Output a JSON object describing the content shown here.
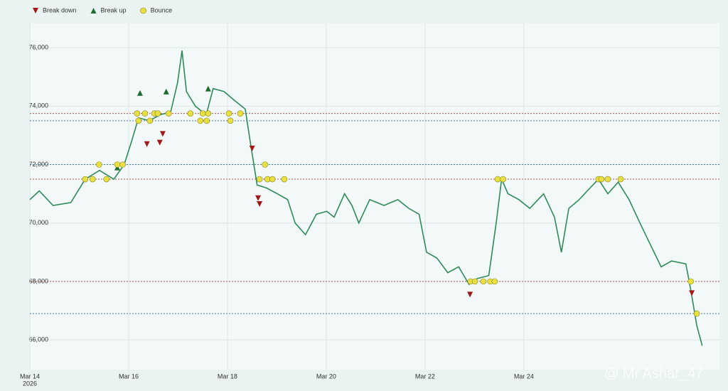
{
  "chart_data": {
    "type": "line",
    "xlim": [
      0,
      13.96
    ],
    "ylim": [
      64980,
      76830
    ],
    "yticks": [
      {
        "value": 66000,
        "label": "66,000"
      },
      {
        "value": 68000,
        "label": "68,000"
      },
      {
        "value": 70000,
        "label": "70,000"
      },
      {
        "value": 72000,
        "label": "72,000"
      },
      {
        "value": 74000,
        "label": "74,000"
      },
      {
        "value": 76000,
        "label": "76,000"
      }
    ],
    "xticks": [
      {
        "value": 0,
        "label": "Mar 14"
      },
      {
        "value": 2,
        "label": "Mar 16"
      },
      {
        "value": 4,
        "label": "Mar 18"
      },
      {
        "value": 6,
        "label": "Mar 20"
      },
      {
        "value": 8,
        "label": "Mar 22"
      },
      {
        "value": 10,
        "label": "Mar 24"
      }
    ],
    "year_label": "2026",
    "grid": true,
    "series": [
      {
        "color": "#2e8b57",
        "x": [
          0,
          0.19,
          0.47,
          0.83,
          1.12,
          1.41,
          1.7,
          1.91,
          2.06,
          2.2,
          2.42,
          2.63,
          2.85,
          2.99,
          3.08,
          3.17,
          3.35,
          3.57,
          3.71,
          3.93,
          4.14,
          4.36,
          4.46,
          4.6,
          4.79,
          5.01,
          5.22,
          5.37,
          5.58,
          5.8,
          6.01,
          6.16,
          6.37,
          6.52,
          6.66,
          6.88,
          7.17,
          7.45,
          7.67,
          7.88,
          8.03,
          8.24,
          8.46,
          8.68,
          8.89,
          9.06,
          9.29,
          9.44,
          9.55,
          9.68,
          9.9,
          10.12,
          10.4,
          10.62,
          10.76,
          10.91,
          11.12,
          11.34,
          11.51,
          11.7,
          11.91,
          12.13,
          12.35,
          12.55,
          12.78,
          12.99,
          13.28,
          13.38,
          13.5,
          13.61
        ],
        "values": [
          70800,
          71100,
          70600,
          70700,
          71500,
          71800,
          71500,
          72000,
          72800,
          73600,
          73500,
          73700,
          73800,
          74800,
          75900,
          74500,
          74000,
          73700,
          74600,
          74500,
          74200,
          73900,
          72800,
          71300,
          71200,
          71000,
          70800,
          70000,
          69600,
          70300,
          70400,
          70200,
          71000,
          70600,
          70000,
          70800,
          70600,
          70800,
          70500,
          70300,
          69000,
          68800,
          68300,
          68500,
          67900,
          68100,
          68200,
          70000,
          71500,
          71000,
          70800,
          70500,
          71000,
          70200,
          69000,
          70500,
          70800,
          71200,
          71500,
          71000,
          71400,
          70800,
          70000,
          69300,
          68500,
          68700,
          68600,
          67700,
          66500,
          65800
        ]
      }
    ],
    "levels": [
      {
        "value": 73750,
        "color": "#b05050"
      },
      {
        "value": 73500,
        "color": "#4a7a9a"
      },
      {
        "value": 72000,
        "color": "#4a7a9a"
      },
      {
        "value": 71500,
        "color": "#b05050"
      },
      {
        "value": 68000,
        "color": "#b05050"
      },
      {
        "value": 66900,
        "color": "#4a7a9a"
      }
    ],
    "markers": [
      {
        "name": "Break down",
        "color": "#a01818",
        "shape": "down",
        "x": [
          2.37,
          2.63,
          2.69,
          4.5,
          4.62,
          4.65,
          8.91,
          13.4
        ],
        "values": [
          72700,
          72750,
          73050,
          72550,
          70850,
          70650,
          67550,
          67600
        ]
      },
      {
        "name": "Break up",
        "color": "#1e6b2e",
        "shape": "up",
        "x": [
          1.77,
          2.23,
          2.76,
          3.61
        ],
        "values": [
          71900,
          74450,
          74500,
          74600
        ]
      },
      {
        "name": "Bounce",
        "color": "#e8e040",
        "shape": "circle",
        "x": [
          1.12,
          1.27,
          1.4,
          1.55,
          1.77,
          1.88,
          2.17,
          2.2,
          2.33,
          2.43,
          2.52,
          2.59,
          2.81,
          3.25,
          3.45,
          3.5,
          3.58,
          3.61,
          4.03,
          4.06,
          4.26,
          4.65,
          4.76,
          4.81,
          4.91,
          5.15,
          8.92,
          9.01,
          9.18,
          9.32,
          9.41,
          9.47,
          9.58,
          11.51,
          11.57,
          11.7,
          11.96,
          13.38,
          13.5
        ],
        "values": [
          71500,
          71500,
          72000,
          71500,
          72000,
          72000,
          73750,
          73500,
          73750,
          73500,
          73750,
          73750,
          73750,
          73750,
          73500,
          73750,
          73500,
          73750,
          73750,
          73500,
          73750,
          71500,
          72000,
          71500,
          71500,
          71500,
          68000,
          68000,
          68000,
          68000,
          68000,
          71500,
          71500,
          71500,
          71500,
          71500,
          71500,
          68000,
          66900
        ]
      }
    ],
    "watermark": "@ Mr Ashar_47"
  }
}
